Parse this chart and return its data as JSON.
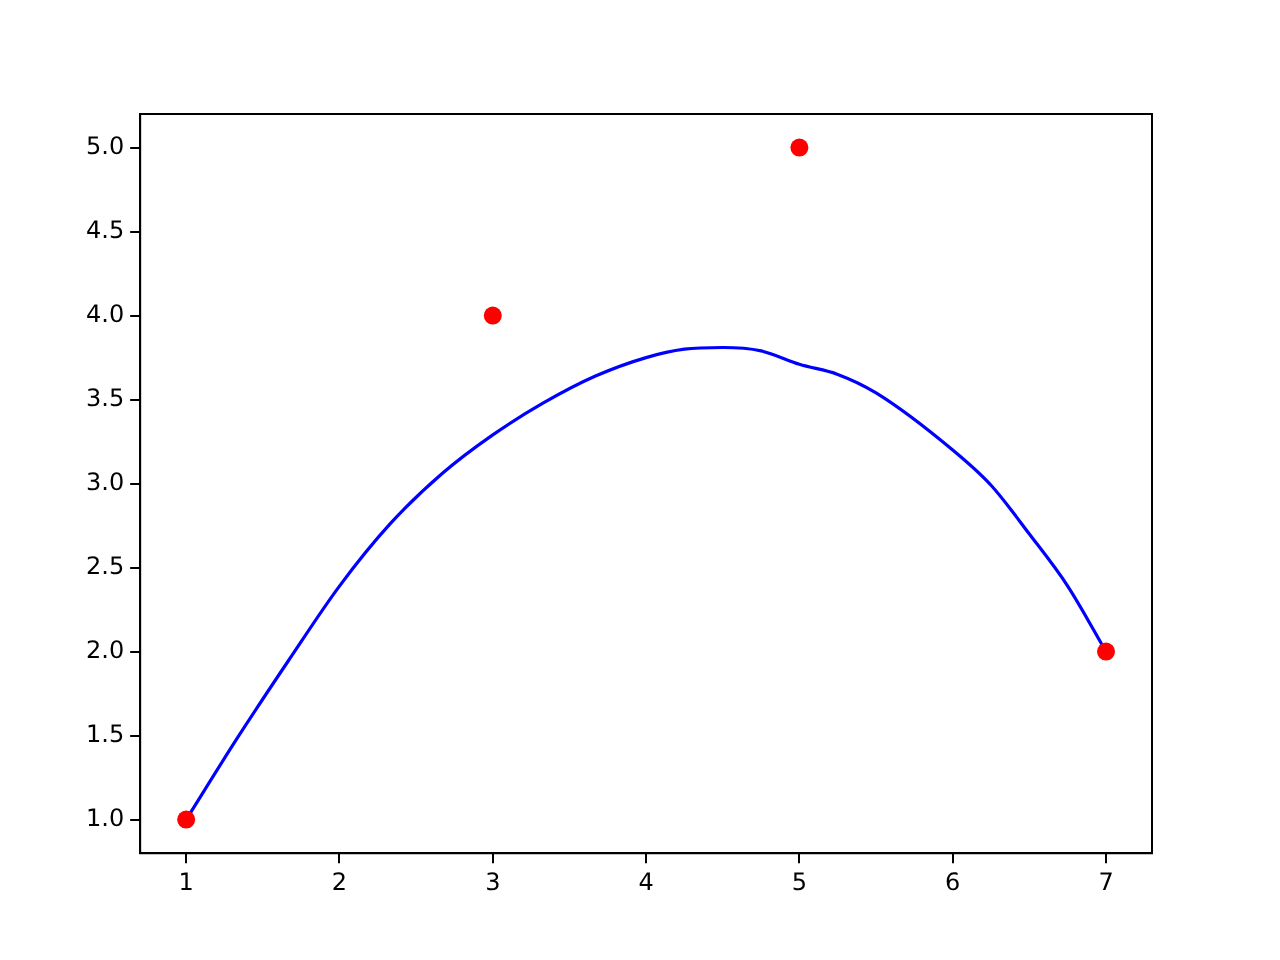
{
  "chart_data": {
    "type": "scatter",
    "line_style": "solid",
    "grid": false,
    "legend": false,
    "xlim": [
      0.7,
      7.3
    ],
    "xticks": [
      1,
      2,
      3,
      4,
      5,
      6,
      7
    ],
    "ylim": [
      0.8,
      5.2
    ],
    "yticks": [
      {
        "value": 1,
        "label": "1.0"
      },
      {
        "value": 1.5,
        "label": "1.5"
      },
      {
        "value": 2,
        "label": "2.0"
      },
      {
        "value": 2.5,
        "label": "2.5"
      },
      {
        "value": 3,
        "label": "3.0"
      },
      {
        "value": 3.5,
        "label": "3.5"
      },
      {
        "value": 4,
        "label": "4.0"
      },
      {
        "value": 4.5,
        "label": "4.5"
      },
      {
        "value": 5,
        "label": "5.0"
      }
    ],
    "series": [
      {
        "type": "line",
        "marker": "none",
        "color": "#0000ff",
        "x": [
          1,
          1.33,
          1.67,
          2,
          2.33,
          2.67,
          3,
          3.33,
          3.67,
          4,
          4.25,
          4.5,
          4.75,
          5,
          5.25,
          5.5,
          6,
          6.25,
          6.5,
          6.75,
          7
        ],
        "values": [
          1,
          1.48,
          1.95,
          2.39,
          2.76,
          3.06,
          3.29,
          3.48,
          3.64,
          3.75,
          3.8,
          3.81,
          3.79,
          3.71,
          3.65,
          3.54,
          3.2,
          2.99,
          2.7,
          2.39,
          2
        ]
      },
      {
        "marker": "circle",
        "color": "#ff0000",
        "x": [
          1,
          3,
          5,
          7
        ],
        "values": [
          1,
          4,
          5,
          2
        ]
      }
    ]
  }
}
